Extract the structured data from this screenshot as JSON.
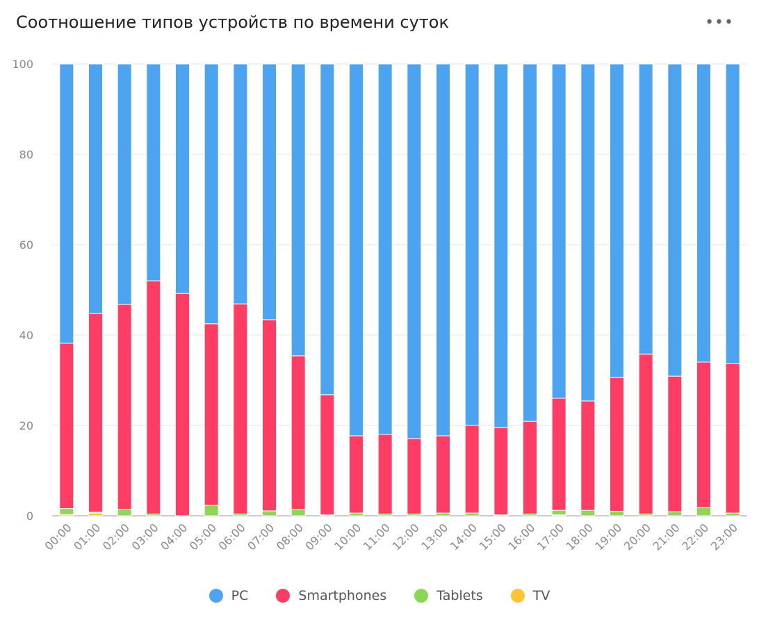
{
  "header": {
    "title": "Соотношение типов устройств по времени суток",
    "menu_icon": "more-horizontal-icon",
    "menu_label": "•••"
  },
  "chart_data": {
    "type": "bar",
    "stacked": true,
    "categories": [
      "00:00",
      "01:00",
      "02:00",
      "03:00",
      "04:00",
      "05:00",
      "06:00",
      "07:00",
      "08:00",
      "09:00",
      "10:00",
      "11:00",
      "12:00",
      "13:00",
      "14:00",
      "15:00",
      "16:00",
      "17:00",
      "18:00",
      "19:00",
      "20:00",
      "21:00",
      "22:00",
      "23:00"
    ],
    "ylim": [
      0,
      100
    ],
    "yticks": [
      0,
      20,
      40,
      60,
      80,
      100
    ],
    "grid": true,
    "legend_position": "bottom",
    "series": [
      {
        "name": "TV",
        "color": "#ffc431",
        "values": [
          0.3,
          0.6,
          0,
          0,
          0,
          0,
          0,
          0,
          0,
          0,
          0,
          0,
          0,
          0,
          0,
          0,
          0,
          0.2,
          0,
          0,
          0,
          0,
          0,
          0
        ]
      },
      {
        "name": "Tablets",
        "color": "#8dd655",
        "values": [
          1.3,
          0.2,
          1.4,
          0.4,
          0,
          2.3,
          0.4,
          1.1,
          1.4,
          0.2,
          0.6,
          0.4,
          0.4,
          0.6,
          0.6,
          0.2,
          0.4,
          1.0,
          1.2,
          1.0,
          0.4,
          0.9,
          1.8,
          0.6
        ]
      },
      {
        "name": "Smartphones",
        "color": "#ff3d64",
        "values": [
          36.6,
          44.0,
          45.4,
          51.6,
          49.2,
          40.2,
          46.5,
          42.3,
          34.0,
          26.6,
          17.1,
          17.6,
          16.7,
          17.1,
          19.4,
          19.3,
          20.5,
          24.8,
          24.2,
          29.6,
          35.4,
          30.0,
          32.2,
          33.1
        ]
      },
      {
        "name": "PC",
        "color": "#4ca3f0",
        "values": [
          61.8,
          55.2,
          53.2,
          48.0,
          50.8,
          57.5,
          53.1,
          56.6,
          64.6,
          73.2,
          82.3,
          82.0,
          82.9,
          82.3,
          80.0,
          80.5,
          79.1,
          74.0,
          74.6,
          69.4,
          64.2,
          69.1,
          66.0,
          66.3
        ]
      }
    ],
    "legend_order": [
      "PC",
      "Smartphones",
      "Tablets",
      "TV"
    ]
  }
}
